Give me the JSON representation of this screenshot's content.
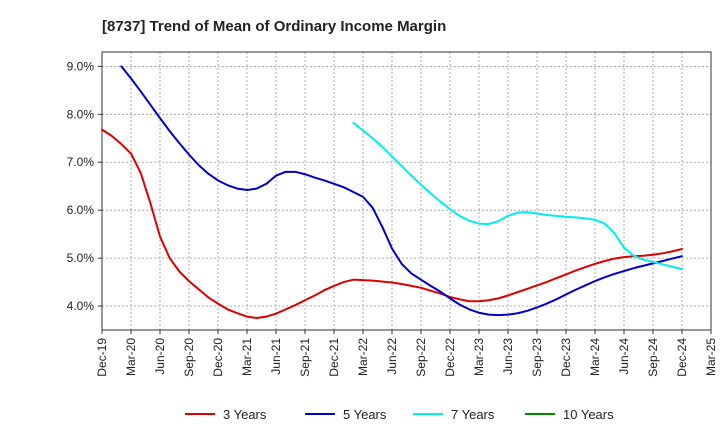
{
  "chart_data": {
    "type": "line",
    "title": "[8737]  Trend of Mean of Ordinary Income Margin",
    "xlabel": "",
    "ylabel": "",
    "x_ticks": [
      "Dec-19",
      "Mar-20",
      "Jun-20",
      "Sep-20",
      "Dec-20",
      "Mar-21",
      "Jun-21",
      "Sep-21",
      "Dec-21",
      "Mar-22",
      "Jun-22",
      "Sep-22",
      "Dec-22",
      "Mar-23",
      "Jun-23",
      "Sep-23",
      "Dec-23",
      "Mar-24",
      "Jun-24",
      "Sep-24",
      "Dec-24",
      "Mar-25"
    ],
    "y_ticks": [
      "4.0%",
      "5.0%",
      "6.0%",
      "7.0%",
      "8.0%",
      "9.0%"
    ],
    "y_tick_values": [
      4.0,
      5.0,
      6.0,
      7.0,
      8.0,
      9.0
    ],
    "ylim": [
      3.5,
      9.3
    ],
    "grid": true,
    "legend_position": "bottom",
    "series": [
      {
        "name": "3 Years",
        "color": "#dd0000",
        "points": [
          [
            "Dec-19",
            7.68
          ],
          [
            "Jan-20",
            7.55
          ],
          [
            "Feb-20",
            7.38
          ],
          [
            "Mar-20",
            7.18
          ],
          [
            "Apr-20",
            6.78
          ],
          [
            "May-20",
            6.15
          ],
          [
            "Jun-20",
            5.45
          ],
          [
            "Jul-20",
            5.0
          ],
          [
            "Aug-20",
            4.72
          ],
          [
            "Sep-20",
            4.52
          ],
          [
            "Oct-20",
            4.35
          ],
          [
            "Nov-20",
            4.18
          ],
          [
            "Dec-20",
            4.05
          ],
          [
            "Jan-21",
            3.93
          ],
          [
            "Feb-21",
            3.85
          ],
          [
            "Mar-21",
            3.78
          ],
          [
            "Apr-21",
            3.75
          ],
          [
            "May-21",
            3.78
          ],
          [
            "Jun-21",
            3.84
          ],
          [
            "Jul-21",
            3.93
          ],
          [
            "Aug-21",
            4.02
          ],
          [
            "Sep-21",
            4.12
          ],
          [
            "Oct-21",
            4.22
          ],
          [
            "Nov-21",
            4.33
          ],
          [
            "Dec-21",
            4.42
          ],
          [
            "Jan-22",
            4.5
          ],
          [
            "Feb-22",
            4.55
          ],
          [
            "Mar-22",
            4.54
          ],
          [
            "Apr-22",
            4.53
          ],
          [
            "May-22",
            4.51
          ],
          [
            "Jun-22",
            4.49
          ],
          [
            "Jul-22",
            4.46
          ],
          [
            "Aug-22",
            4.42
          ],
          [
            "Sep-22",
            4.38
          ],
          [
            "Oct-22",
            4.32
          ],
          [
            "Nov-22",
            4.26
          ],
          [
            "Dec-22",
            4.19
          ],
          [
            "Jan-23",
            4.14
          ],
          [
            "Feb-23",
            4.1
          ],
          [
            "Mar-23",
            4.1
          ],
          [
            "Apr-23",
            4.12
          ],
          [
            "May-23",
            4.16
          ],
          [
            "Jun-23",
            4.22
          ],
          [
            "Jul-23",
            4.29
          ],
          [
            "Aug-23",
            4.36
          ],
          [
            "Sep-23",
            4.43
          ],
          [
            "Oct-23",
            4.5
          ],
          [
            "Nov-23",
            4.58
          ],
          [
            "Dec-23",
            4.66
          ],
          [
            "Jan-24",
            4.74
          ],
          [
            "Feb-24",
            4.81
          ],
          [
            "Mar-24",
            4.88
          ],
          [
            "Apr-24",
            4.94
          ],
          [
            "May-24",
            4.99
          ],
          [
            "Jun-24",
            5.02
          ],
          [
            "Jul-24",
            5.04
          ],
          [
            "Aug-24",
            5.05
          ],
          [
            "Sep-24",
            5.07
          ],
          [
            "Oct-24",
            5.1
          ],
          [
            "Nov-24",
            5.14
          ],
          [
            "Dec-24",
            5.19
          ]
        ]
      },
      {
        "name": "5 Years",
        "color": "#0000cc",
        "points": [
          [
            "Feb-20",
            9.0
          ],
          [
            "Mar-20",
            8.75
          ],
          [
            "Apr-20",
            8.48
          ],
          [
            "May-20",
            8.2
          ],
          [
            "Jun-20",
            7.92
          ],
          [
            "Jul-20",
            7.65
          ],
          [
            "Aug-20",
            7.4
          ],
          [
            "Sep-20",
            7.16
          ],
          [
            "Oct-20",
            6.94
          ],
          [
            "Nov-20",
            6.76
          ],
          [
            "Dec-20",
            6.62
          ],
          [
            "Jan-21",
            6.52
          ],
          [
            "Feb-21",
            6.45
          ],
          [
            "Mar-21",
            6.42
          ],
          [
            "Apr-21",
            6.45
          ],
          [
            "May-21",
            6.55
          ],
          [
            "Jun-21",
            6.72
          ],
          [
            "Jul-21",
            6.8
          ],
          [
            "Aug-21",
            6.8
          ],
          [
            "Sep-21",
            6.75
          ],
          [
            "Oct-21",
            6.68
          ],
          [
            "Nov-21",
            6.62
          ],
          [
            "Dec-21",
            6.55
          ],
          [
            "Jan-22",
            6.48
          ],
          [
            "Feb-22",
            6.38
          ],
          [
            "Mar-22",
            6.28
          ],
          [
            "Apr-22",
            6.05
          ],
          [
            "May-22",
            5.65
          ],
          [
            "Jun-22",
            5.2
          ],
          [
            "Jul-22",
            4.88
          ],
          [
            "Aug-22",
            4.68
          ],
          [
            "Sep-22",
            4.55
          ],
          [
            "Oct-22",
            4.42
          ],
          [
            "Nov-22",
            4.3
          ],
          [
            "Dec-22",
            4.16
          ],
          [
            "Jan-23",
            4.03
          ],
          [
            "Feb-23",
            3.93
          ],
          [
            "Mar-23",
            3.86
          ],
          [
            "Apr-23",
            3.82
          ],
          [
            "May-23",
            3.81
          ],
          [
            "Jun-23",
            3.82
          ],
          [
            "Jul-23",
            3.85
          ],
          [
            "Aug-23",
            3.9
          ],
          [
            "Sep-23",
            3.97
          ],
          [
            "Oct-23",
            4.05
          ],
          [
            "Nov-23",
            4.14
          ],
          [
            "Dec-23",
            4.24
          ],
          [
            "Jan-24",
            4.34
          ],
          [
            "Feb-24",
            4.43
          ],
          [
            "Mar-24",
            4.52
          ],
          [
            "Apr-24",
            4.6
          ],
          [
            "May-24",
            4.67
          ],
          [
            "Jun-24",
            4.73
          ],
          [
            "Jul-24",
            4.79
          ],
          [
            "Aug-24",
            4.84
          ],
          [
            "Sep-24",
            4.89
          ],
          [
            "Oct-24",
            4.94
          ],
          [
            "Nov-24",
            4.99
          ],
          [
            "Dec-24",
            5.04
          ]
        ]
      },
      {
        "name": "7 Years",
        "color": "#00eeee",
        "points": [
          [
            "Feb-22",
            7.82
          ],
          [
            "Mar-22",
            7.66
          ],
          [
            "Apr-22",
            7.5
          ],
          [
            "May-22",
            7.32
          ],
          [
            "Jun-22",
            7.12
          ],
          [
            "Jul-22",
            6.92
          ],
          [
            "Aug-22",
            6.72
          ],
          [
            "Sep-22",
            6.53
          ],
          [
            "Oct-22",
            6.35
          ],
          [
            "Nov-22",
            6.18
          ],
          [
            "Dec-22",
            6.02
          ],
          [
            "Jan-23",
            5.88
          ],
          [
            "Feb-23",
            5.78
          ],
          [
            "Mar-23",
            5.72
          ],
          [
            "Apr-23",
            5.71
          ],
          [
            "May-23",
            5.77
          ],
          [
            "Jun-23",
            5.88
          ],
          [
            "Jul-23",
            5.95
          ],
          [
            "Aug-23",
            5.96
          ],
          [
            "Sep-23",
            5.93
          ],
          [
            "Oct-23",
            5.9
          ],
          [
            "Nov-23",
            5.88
          ],
          [
            "Dec-23",
            5.86
          ],
          [
            "Jan-24",
            5.85
          ],
          [
            "Feb-24",
            5.83
          ],
          [
            "Mar-24",
            5.8
          ],
          [
            "Apr-24",
            5.72
          ],
          [
            "May-24",
            5.52
          ],
          [
            "Jun-24",
            5.22
          ],
          [
            "Jul-24",
            5.05
          ],
          [
            "Aug-24",
            4.97
          ],
          [
            "Sep-24",
            4.92
          ],
          [
            "Oct-24",
            4.87
          ],
          [
            "Nov-24",
            4.82
          ],
          [
            "Dec-24",
            4.77
          ]
        ]
      },
      {
        "name": "10 Years",
        "color": "#008800",
        "points": []
      }
    ]
  }
}
